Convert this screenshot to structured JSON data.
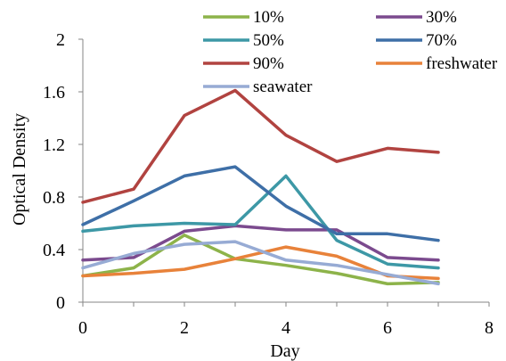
{
  "chart_data": {
    "type": "line",
    "xlabel": "Day",
    "ylabel": "Optical Density",
    "xlim": [
      0,
      8
    ],
    "ylim": [
      0,
      2
    ],
    "xticks": [
      0,
      2,
      4,
      6,
      8
    ],
    "yticks": [
      0,
      0.4,
      0.8,
      1.2,
      1.6,
      2
    ],
    "x_tick_labels": [
      "0",
      "2",
      "4",
      "6",
      "8"
    ],
    "y_tick_labels": [
      "0",
      "0.4",
      "0.8",
      "1.2",
      "1.6",
      "2"
    ],
    "grid": false,
    "legend_position": "top-right",
    "x": [
      0,
      1,
      2,
      3,
      4,
      5,
      6,
      7
    ],
    "series": [
      {
        "name": "10%",
        "color": "#8db34a",
        "values": [
          0.2,
          0.26,
          0.51,
          0.33,
          0.28,
          0.22,
          0.14,
          0.15
        ]
      },
      {
        "name": "30%",
        "color": "#7b4a8e",
        "values": [
          0.32,
          0.34,
          0.54,
          0.58,
          0.55,
          0.55,
          0.34,
          0.32
        ]
      },
      {
        "name": "50%",
        "color": "#3d98a6",
        "values": [
          0.54,
          0.58,
          0.6,
          0.59,
          0.96,
          0.47,
          0.29,
          0.26
        ]
      },
      {
        "name": "70%",
        "color": "#3e6fa7",
        "values": [
          0.59,
          0.77,
          0.96,
          1.03,
          0.73,
          0.52,
          0.52,
          0.47
        ]
      },
      {
        "name": "90%",
        "color": "#b14340",
        "values": [
          0.76,
          0.86,
          1.42,
          1.61,
          1.27,
          1.07,
          1.17,
          1.14
        ]
      },
      {
        "name": "freshwater",
        "color": "#e8823a",
        "values": [
          0.2,
          0.22,
          0.25,
          0.33,
          0.42,
          0.35,
          0.2,
          0.18
        ]
      },
      {
        "name": "seawater",
        "color": "#97abd4",
        "values": [
          0.26,
          0.37,
          0.44,
          0.46,
          0.32,
          0.28,
          0.21,
          0.14
        ]
      }
    ]
  }
}
